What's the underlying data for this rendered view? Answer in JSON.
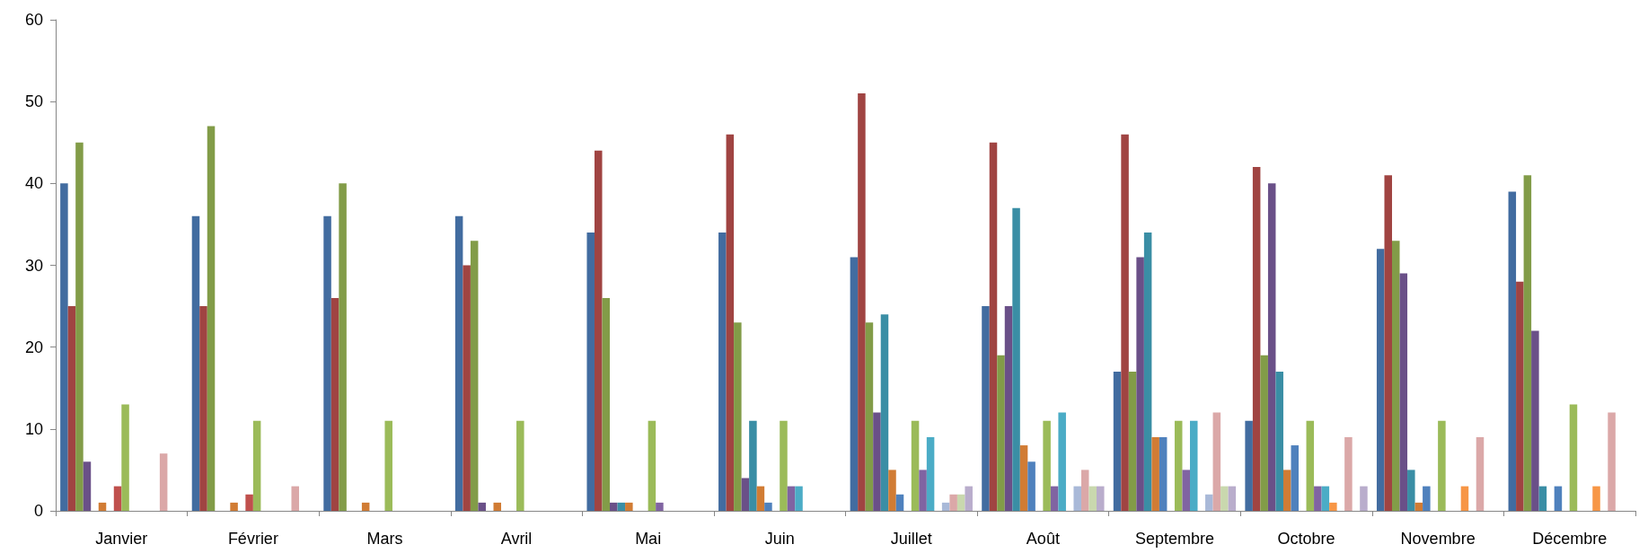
{
  "chart_data": {
    "type": "bar",
    "categories": [
      "Janvier",
      "Février",
      "Mars",
      "Avril",
      "Mai",
      "Juin",
      "Juillet",
      "Août",
      "Septembre",
      "Octobre",
      "Novembre",
      "Décembre"
    ],
    "series": [
      {
        "color": "#426ca0",
        "values": [
          40,
          36,
          36,
          36,
          34,
          34,
          31,
          25,
          17,
          11,
          32,
          39
        ]
      },
      {
        "color": "#a04442",
        "values": [
          25,
          25,
          26,
          30,
          44,
          46,
          51,
          45,
          46,
          42,
          41,
          28
        ]
      },
      {
        "color": "#829c48",
        "values": [
          45,
          47,
          40,
          33,
          26,
          23,
          23,
          19,
          17,
          19,
          33,
          41
        ]
      },
      {
        "color": "#6a5088",
        "values": [
          6,
          0,
          0,
          1,
          1,
          4,
          12,
          25,
          31,
          40,
          29,
          22
        ]
      },
      {
        "color": "#3a8ea5",
        "values": [
          0,
          0,
          0,
          0,
          1,
          11,
          24,
          37,
          34,
          17,
          5,
          3
        ]
      },
      {
        "color": "#d17c34",
        "values": [
          1,
          1,
          1,
          1,
          1,
          3,
          5,
          8,
          9,
          5,
          1,
          0
        ]
      },
      {
        "color": "#4f81bd",
        "values": [
          0,
          0,
          0,
          0,
          0,
          1,
          2,
          6,
          9,
          8,
          3,
          3
        ]
      },
      {
        "color": "#c0504d",
        "values": [
          3,
          2,
          0,
          0,
          0,
          0,
          0,
          0,
          0,
          0,
          0,
          0
        ]
      },
      {
        "color": "#9bbb59",
        "values": [
          13,
          11,
          11,
          11,
          11,
          11,
          11,
          11,
          11,
          11,
          11,
          13
        ]
      },
      {
        "color": "#8064a2",
        "values": [
          0,
          0,
          0,
          0,
          1,
          3,
          5,
          3,
          5,
          3,
          0,
          0
        ]
      },
      {
        "color": "#4bacc6",
        "values": [
          0,
          0,
          0,
          0,
          0,
          3,
          9,
          12,
          11,
          3,
          0,
          0
        ]
      },
      {
        "color": "#f79646",
        "values": [
          0,
          0,
          0,
          0,
          0,
          0,
          0,
          0,
          0,
          1,
          3,
          3
        ]
      },
      {
        "color": "#a9b9d8",
        "values": [
          0,
          0,
          0,
          0,
          0,
          0,
          1,
          3,
          2,
          0,
          0,
          0
        ]
      },
      {
        "color": "#dba8a8",
        "values": [
          7,
          3,
          0,
          0,
          0,
          0,
          2,
          5,
          12,
          9,
          9,
          12
        ]
      },
      {
        "color": "#c9d8ae",
        "values": [
          0,
          0,
          0,
          0,
          0,
          0,
          2,
          3,
          3,
          0,
          0,
          0
        ]
      },
      {
        "color": "#b9adcc",
        "values": [
          0,
          0,
          0,
          0,
          0,
          0,
          3,
          3,
          3,
          3,
          0,
          0
        ]
      }
    ],
    "ylim": [
      0,
      60
    ],
    "yticks": [
      0,
      10,
      20,
      30,
      40,
      50,
      60
    ],
    "grid": false,
    "legend": false
  }
}
